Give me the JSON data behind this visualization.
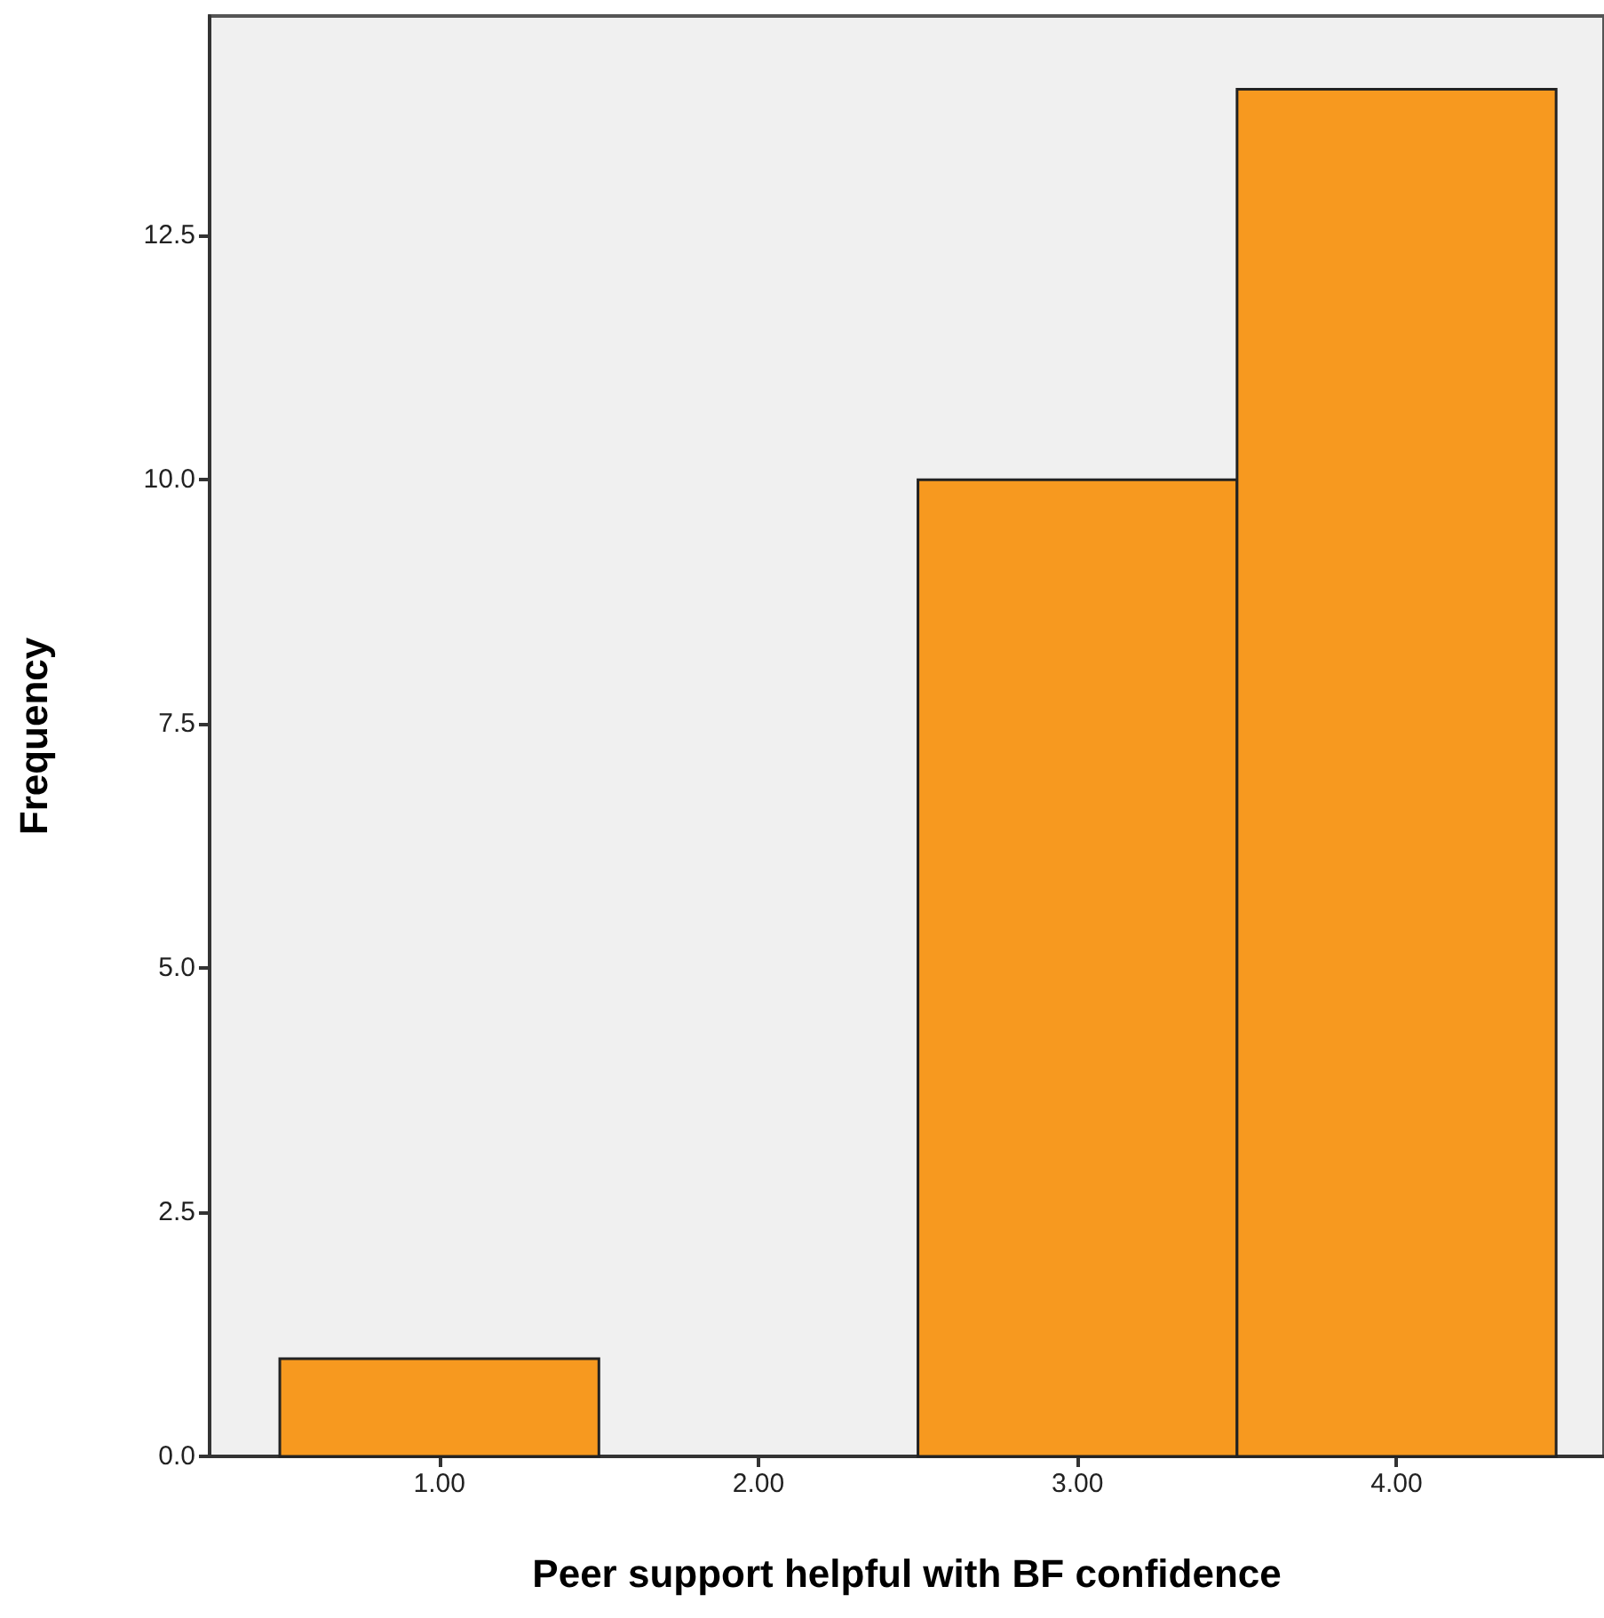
{
  "chart_data": {
    "type": "histogram",
    "xlabel": "Peer support helpful with BF confidence",
    "ylabel": "Frequency",
    "bins": [
      0.5,
      1.5,
      2.5,
      3.5,
      4.5
    ],
    "values": [
      1,
      0,
      10,
      14
    ],
    "color": "#f7991f",
    "xlim": [
      0.28,
      4.65
    ],
    "ylim": [
      0,
      14.75
    ],
    "xticks": [
      {
        "value": 1,
        "label": "1.00"
      },
      {
        "value": 2,
        "label": "2.00"
      },
      {
        "value": 3,
        "label": "3.00"
      },
      {
        "value": 4,
        "label": "4.00"
      }
    ],
    "yticks": [
      {
        "value": 0,
        "label": "0.0"
      },
      {
        "value": 2.5,
        "label": "2.5"
      },
      {
        "value": 5,
        "label": "5.0"
      },
      {
        "value": 7.5,
        "label": "7.5"
      },
      {
        "value": 10,
        "label": "10.0"
      },
      {
        "value": 12.5,
        "label": "12.5"
      }
    ],
    "grid": false
  }
}
